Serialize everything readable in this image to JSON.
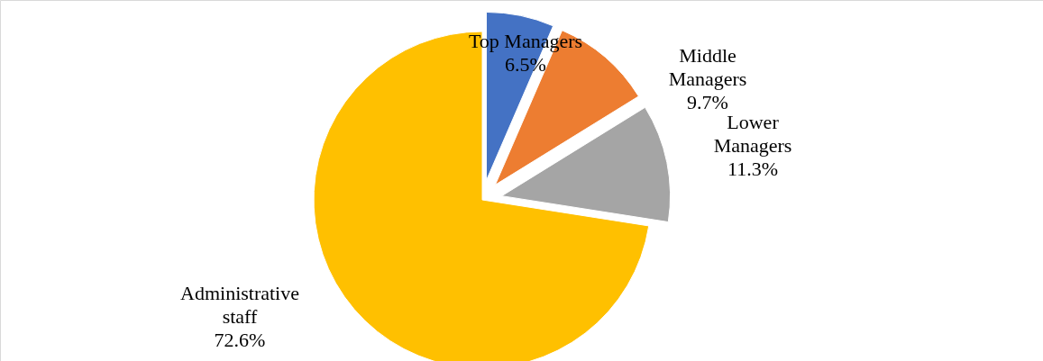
{
  "chart_data": {
    "type": "pie",
    "categories": [
      "Top Managers",
      "Middle Managers",
      "Lower Managers",
      "Administrative staff"
    ],
    "values": [
      6.5,
      9.7,
      11.3,
      72.6
    ],
    "colors": [
      "#4472c4",
      "#ed7d31",
      "#a5a5a5",
      "#ffc000"
    ],
    "value_labels": [
      "6.5%",
      "9.7%",
      "11.3%",
      "72.6%"
    ]
  }
}
